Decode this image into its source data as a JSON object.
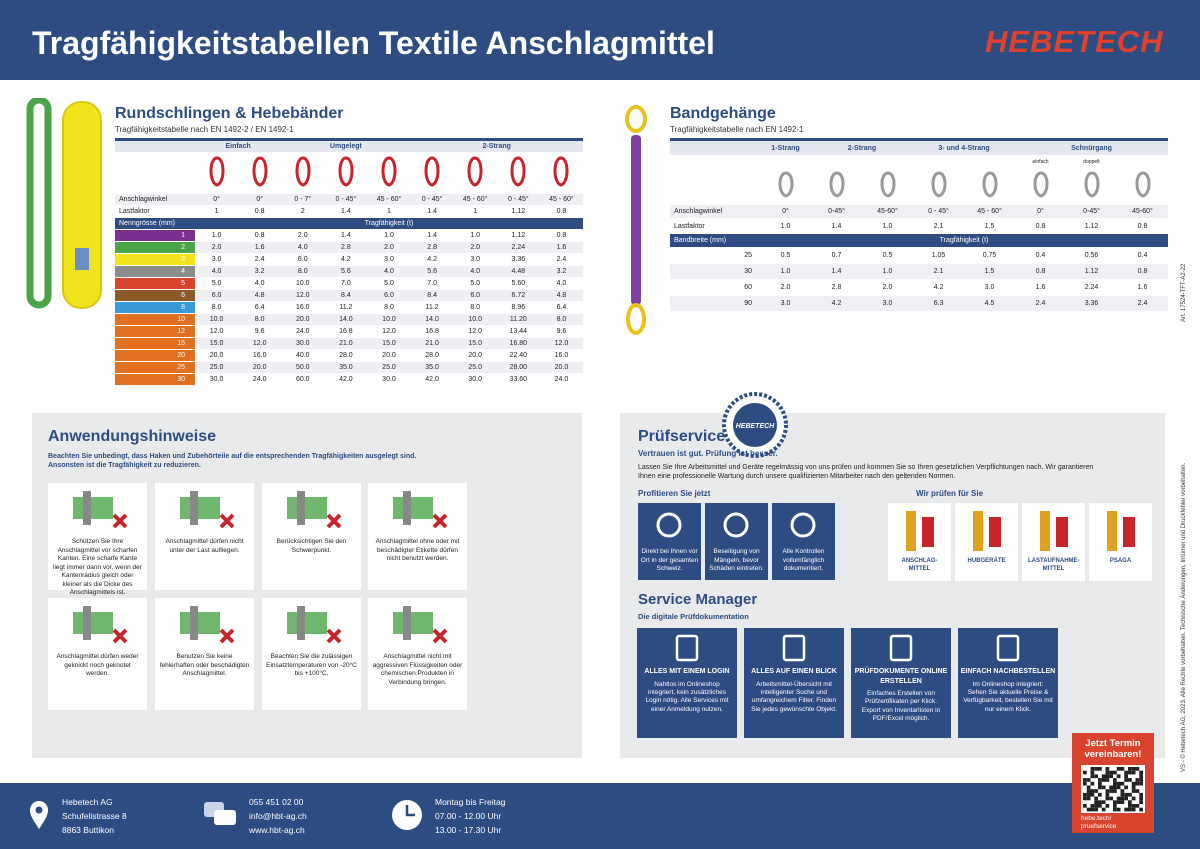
{
  "header": {
    "title": "Tragfähigkeitstabellen Textile Anschlagmittel",
    "logo": "HEBETECH"
  },
  "rundschlingen": {
    "title": "Rundschlingen & Hebebänder",
    "subtitle": "Tragfähigkeitstabelle nach EN 1492-2 / EN 1492-1",
    "groups": [
      "Einfach",
      "Umgelegt",
      "2-Strang"
    ],
    "angle_label": "Anschlagwinkel",
    "angles": [
      "0°",
      "0°",
      "0 - 7°",
      "0 - 45°",
      "45 - 60°",
      "0 - 45°",
      "45 - 60°",
      "0 - 45°",
      "45 - 60°"
    ],
    "factor_label": "Lastfaktor",
    "factors": [
      "1",
      "0.8",
      "2",
      "1.4",
      "1",
      "1.4",
      "1",
      "1.12",
      "0.8"
    ],
    "size_label": "Nenngrösse (mm)",
    "capacity_label": "Tragfähigkeit (t)",
    "rows": [
      {
        "size": "1",
        "values": [
          "1.0",
          "0.8",
          "2.0",
          "1.4",
          "1.0",
          "1.4",
          "1.0",
          "1.12",
          "0.8"
        ]
      },
      {
        "size": "2",
        "values": [
          "2.0",
          "1.6",
          "4.0",
          "2.8",
          "2.0",
          "2.8",
          "2.0",
          "2.24",
          "1.6"
        ]
      },
      {
        "size": "3",
        "values": [
          "3.0",
          "2.4",
          "6.0",
          "4.2",
          "3.0",
          "4.2",
          "3.0",
          "3.36",
          "2.4"
        ]
      },
      {
        "size": "4",
        "values": [
          "4.0",
          "3.2",
          "8.0",
          "5.6",
          "4.0",
          "5.6",
          "4.0",
          "4.48",
          "3.2"
        ]
      },
      {
        "size": "5",
        "values": [
          "5.0",
          "4.0",
          "10.0",
          "7.0",
          "5.0",
          "7.0",
          "5.0",
          "5.60",
          "4.0"
        ]
      },
      {
        "size": "6",
        "values": [
          "6.0",
          "4.8",
          "12.0",
          "8.4",
          "6.0",
          "8.4",
          "6.0",
          "6.72",
          "4.8"
        ]
      },
      {
        "size": "8",
        "values": [
          "8.0",
          "6.4",
          "16.0",
          "11.2",
          "8.0",
          "11.2",
          "8.0",
          "8.96",
          "6.4"
        ]
      },
      {
        "size": "10",
        "values": [
          "10.0",
          "8.0",
          "20.0",
          "14.0",
          "10.0",
          "14.0",
          "10.0",
          "11.20",
          "8.0"
        ]
      },
      {
        "size": "12",
        "values": [
          "12.0",
          "9.6",
          "24.0",
          "16.8",
          "12.0",
          "16.8",
          "12.0",
          "13.44",
          "9.6"
        ]
      },
      {
        "size": "15",
        "values": [
          "15.0",
          "12.0",
          "30.0",
          "21.0",
          "15.0",
          "21.0",
          "15.0",
          "16.80",
          "12.0"
        ]
      },
      {
        "size": "20",
        "values": [
          "20.0",
          "16.0",
          "40.0",
          "28.0",
          "20.0",
          "28.0",
          "20.0",
          "22.40",
          "16.0"
        ]
      },
      {
        "size": "25",
        "values": [
          "25.0",
          "20.0",
          "50.0",
          "35.0",
          "25.0",
          "35.0",
          "25.0",
          "28.00",
          "20.0"
        ]
      },
      {
        "size": "30",
        "values": [
          "30.0",
          "24.0",
          "60.0",
          "42.0",
          "30.0",
          "42.0",
          "30.0",
          "33.60",
          "24.0"
        ]
      }
    ]
  },
  "bandgehaenge": {
    "title": "Bandgehänge",
    "subtitle": "Tragfähigkeitstabelle nach EN 1492-1",
    "groups": [
      "1-Strang",
      "2-Strang",
      "3- und 4-Strang",
      "Schnürgang"
    ],
    "sub_labels": [
      "einfach",
      "doppelt"
    ],
    "angle_label": "Anschlagwinkel",
    "angles": [
      "0°",
      "0-45°",
      "45-60°",
      "0 - 45°",
      "45 - 60°",
      "0°",
      "0-45°",
      "45-60°"
    ],
    "factor_label": "Lastfaktor",
    "factors": [
      "1.0",
      "1.4",
      "1.0",
      "2.1",
      "1.5",
      "0.8",
      "1.12",
      "0.8"
    ],
    "width_label": "Bandbreite (mm)",
    "capacity_label": "Tragfähigkeit (t)",
    "rows": [
      {
        "width": "25",
        "values": [
          "0.5",
          "0.7",
          "0.5",
          "1.05",
          "0.75",
          "0.4",
          "0.56",
          "0.4"
        ]
      },
      {
        "width": "30",
        "values": [
          "1.0",
          "1.4",
          "1.0",
          "2.1",
          "1.5",
          "0.8",
          "1.12",
          "0.8"
        ]
      },
      {
        "width": "60",
        "values": [
          "2.0",
          "2.8",
          "2.0",
          "4.2",
          "3.0",
          "1.6",
          "2.24",
          "1.6"
        ]
      },
      {
        "width": "90",
        "values": [
          "3.0",
          "4.2",
          "3.0",
          "6.3",
          "4.5",
          "2.4",
          "3.36",
          "2.4"
        ]
      }
    ]
  },
  "side": {
    "article": "Art. 17524-TFT-A2-22",
    "copyright": "VS - © Hebetech AG, 2023. Alle Rechte vorbehalten. Technische Änderungen, Irrtümer und Druckfehler vorbehalten."
  },
  "hinweise": {
    "title": "Anwendungshinweise",
    "intro": "Beachten Sie unbedingt, dass Haken und Zubehörteile auf die entsprechenden Tragfähigkeiten ausgelegt sind. Ansonsten ist die Tragfähigkeit zu reduzieren.",
    "cards": [
      "Schützen Sie Ihre Anschlagmittel vor scharfen Kanten. Eine scharfe Kante liegt immer dann vor, wenn der Kantenradius gleich oder kleiner als die Dicke des Anschlagmittels ist.",
      "Anschlagmittel dürfen nicht unter der Last aufliegen.",
      "Berücksichtigen Sie den Schwerpunkt.",
      "Anschlagmittel ohne oder mit beschädigter Etikette dürfen nicht benutzt werden.",
      "Anschlagmittel dürfen weder geknickt noch geknotet werden.",
      "Benutzen Sie keine fehlerhaften oder beschädigten Anschlagmittel.",
      "Beachten Sie die zulässigen Einsatztemperaturen von -20°C bis +100°C.",
      "Anschlagmittel nicht mit aggressiven Flüssigkeiten oder chemischen Produkten in Verbindung bringen."
    ]
  },
  "pruefservice": {
    "title": "Prüfservice",
    "badge": "HEBETECH",
    "tagline": "Vertrauen ist gut. Prüfung ist besser.",
    "text": "Lassen Sie Ihre Arbeitsmittel und Geräte regelmässig von uns prüfen und kommen Sie so Ihren gesetzlichen Verpflichtungen nach. Wir garantieren Ihnen eine professionelle Wartung durch unsere qualifizierten Mitarbeiter nach den geltenden Normen.",
    "benefits_title": "Profitieren Sie jetzt",
    "benefits": [
      "Direkt bei Ihnen vor Ort in der gesamten Schweiz.",
      "Beseitigung von Mängeln, bevor Schäden eintreten.",
      "Alle Kontrollen vollumfänglich dokumentiert."
    ],
    "checks_title": "Wir prüfen für Sie",
    "checks": [
      "ANSCHLAG-MITTEL",
      "HUBGERÄTE",
      "LASTAUFNAHME-MITTEL",
      "PSAGA"
    ]
  },
  "service_manager": {
    "title": "Service Manager",
    "subtitle": "Die digitale Prüfdokumentation",
    "cards": [
      {
        "heading": "ALLES MIT EINEM LOGIN",
        "text": "Nahtlos im Onlineshop integriert, kein zusätzliches Login nötig. Alle Services mit einer Anmeldung nutzen."
      },
      {
        "heading": "ALLES AUF EINEN BLICK",
        "text": "Arbeitsmittel-Übersicht mit intelligenter Suche und umfangreichem Filter. Finden Sie jedes gewünschte Objekt."
      },
      {
        "heading": "PRÜFDOKUMENTE ONLINE ERSTELLEN",
        "text": "Einfaches Erstellen von Prüfzertifikaten per Klick. Export von Inventarlisten in PDF/Excel möglich."
      },
      {
        "heading": "EINFACH NACHBESTELLEN",
        "text": "Im Onlineshop integriert: Sehen Sie aktuelle Preise & Verfügbarkeit, bestellen Sie mit nur einem Klick."
      }
    ]
  },
  "cta": {
    "title": "Jetzt Termin vereinbaren!",
    "link": "hebe.tech/ pruefservice"
  },
  "footer": {
    "address": [
      "Hebetech AG",
      "Schufelistrasse 8",
      "8863 Buttikon"
    ],
    "contact": [
      "055 451 02 00",
      "info@hbt-ag.ch",
      "www.hbt-ag.ch"
    ],
    "hours": [
      "Montag bis Freitag",
      "07.00 - 12.00 Uhr",
      "13.00 - 17.30 Uhr"
    ]
  }
}
